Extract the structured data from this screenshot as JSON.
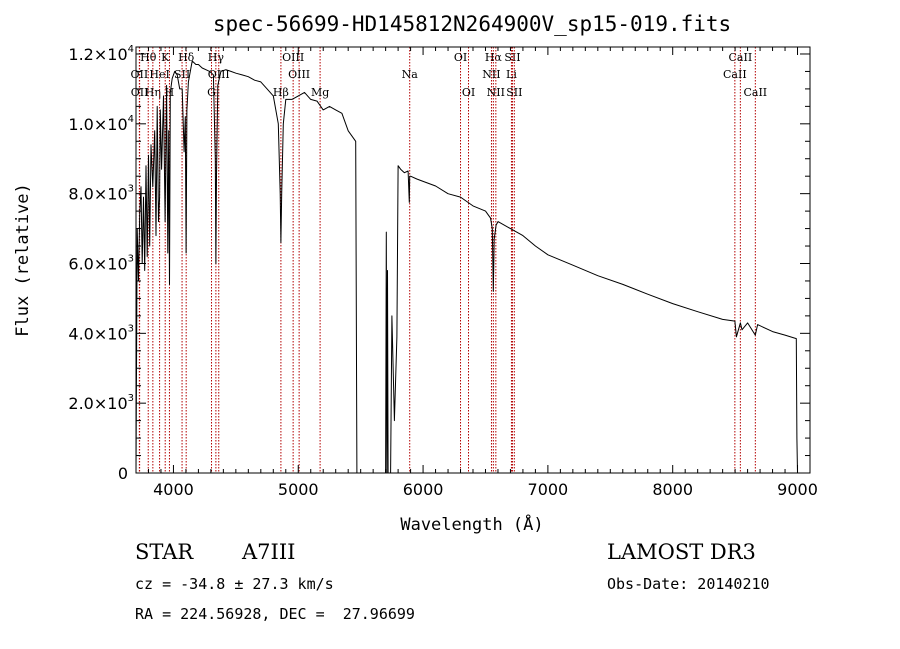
{
  "chart_data": {
    "type": "line",
    "title": "spec-56699-HD145812N264900V_sp15-019.fits",
    "xlabel": "Wavelength (Å)",
    "ylabel": "Flux (relative)",
    "xlim": [
      3700,
      9100
    ],
    "ylim": [
      0,
      12200
    ],
    "x_ticks": [
      {
        "value": 4000,
        "label": "4000"
      },
      {
        "value": 5000,
        "label": "5000"
      },
      {
        "value": 6000,
        "label": "6000"
      },
      {
        "value": 7000,
        "label": "7000"
      },
      {
        "value": 8000,
        "label": "8000"
      },
      {
        "value": 9000,
        "label": "9000"
      }
    ],
    "y_ticks": [
      {
        "value": 0,
        "mantissa": "0",
        "exp": ""
      },
      {
        "value": 2000,
        "mantissa": "2.0×10",
        "exp": "3"
      },
      {
        "value": 4000,
        "mantissa": "4.0×10",
        "exp": "3"
      },
      {
        "value": 6000,
        "mantissa": "6.0×10",
        "exp": "3"
      },
      {
        "value": 8000,
        "mantissa": "8.0×10",
        "exp": "3"
      },
      {
        "value": 10000,
        "mantissa": "1.0×10",
        "exp": "4"
      },
      {
        "value": 12000,
        "mantissa": "1.2×10",
        "exp": "4"
      }
    ],
    "series": [
      {
        "name": "flux",
        "x": [
          3700,
          3705,
          3710,
          3720,
          3730,
          3740,
          3750,
          3760,
          3770,
          3780,
          3790,
          3800,
          3810,
          3820,
          3835,
          3850,
          3860,
          3870,
          3880,
          3889,
          3895,
          3905,
          3920,
          3933,
          3945,
          3955,
          3962,
          3968,
          3975,
          3990,
          4010,
          4030,
          4050,
          4070,
          4085,
          4095,
          4101,
          4108,
          4120,
          4150,
          4180,
          4200,
          4230,
          4260,
          4290,
          4320,
          4335,
          4340,
          4345,
          4355,
          4380,
          4420,
          4460,
          4500,
          4550,
          4600,
          4650,
          4700,
          4750,
          4800,
          4840,
          4855,
          4861,
          4867,
          4880,
          4900,
          4950,
          5000,
          5050,
          5100,
          5150,
          5200,
          5250,
          5300,
          5350,
          5400,
          5440,
          5460,
          5470,
          5480,
          5560,
          5640,
          5700,
          5705,
          5710,
          5715,
          5720,
          5725,
          5740,
          5750,
          5770,
          5790,
          5800,
          5820,
          5850,
          5880,
          5890,
          5893,
          5900,
          5950,
          6000,
          6100,
          6200,
          6300,
          6400,
          6500,
          6540,
          6555,
          6563,
          6570,
          6585,
          6600,
          6700,
          6800,
          6900,
          7000,
          7200,
          7400,
          7600,
          7800,
          8000,
          8200,
          8400,
          8498,
          8510,
          8542,
          8555,
          8600,
          8662,
          8680,
          8800,
          8900,
          8990,
          8995,
          9000
        ],
        "values": [
          0,
          3500,
          7000,
          5500,
          7400,
          8200,
          6000,
          7900,
          5800,
          8800,
          6200,
          9100,
          6500,
          9400,
          8200,
          9800,
          6800,
          10500,
          7200,
          7900,
          10400,
          8700,
          10800,
          7200,
          11100,
          6300,
          9800,
          5400,
          10900,
          11300,
          11500,
          11400,
          11000,
          11000,
          9200,
          10200,
          6300,
          10400,
          11200,
          11800,
          11700,
          11700,
          11600,
          11550,
          11500,
          11400,
          9000,
          6000,
          8500,
          11100,
          11500,
          11550,
          11500,
          11450,
          11400,
          11350,
          11250,
          11200,
          11000,
          10800,
          10000,
          8000,
          6600,
          8000,
          10000,
          10700,
          10700,
          10800,
          10900,
          10700,
          10650,
          10400,
          10500,
          10400,
          10300,
          9800,
          9600,
          9500,
          0,
          0,
          0,
          0,
          0,
          6900,
          0,
          5800,
          0,
          0,
          0,
          4500,
          1500,
          3900,
          8800,
          8700,
          8600,
          8650,
          7750,
          8500,
          8500,
          8420,
          8350,
          8220,
          8000,
          7900,
          7650,
          7500,
          7300,
          7000,
          5200,
          6700,
          7100,
          7200,
          7000,
          6800,
          6500,
          6250,
          5950,
          5650,
          5400,
          5120,
          4850,
          4620,
          4400,
          4350,
          3900,
          4300,
          4100,
          4300,
          3950,
          4250,
          4050,
          3950,
          3850,
          1000,
          0
        ]
      }
    ],
    "emission_lines": [
      {
        "label": "Hθ",
        "x": 3798,
        "row": 1
      },
      {
        "label": "OII",
        "x": 3727,
        "row": 2
      },
      {
        "label": "OII",
        "x": 3729,
        "row": 3
      },
      {
        "label": "Hη",
        "x": 3835,
        "row": 3
      },
      {
        "label": "HeI",
        "x": 3889,
        "row": 2
      },
      {
        "label": "K",
        "x": 3934,
        "row": 1
      },
      {
        "label": "H",
        "x": 3968,
        "row": 3
      },
      {
        "label": "SII",
        "x": 4069,
        "row": 2
      },
      {
        "label": "Hδ",
        "x": 4102,
        "row": 1
      },
      {
        "label": "Hγ",
        "x": 4340,
        "row": 1
      },
      {
        "label": "G",
        "x": 4305,
        "row": 3
      },
      {
        "label": "OIII",
        "x": 4363,
        "row": 2
      },
      {
        "label": "OIII",
        "x": 4959,
        "row": 1
      },
      {
        "label": "OIII",
        "x": 5007,
        "row": 2
      },
      {
        "label": "Hβ",
        "x": 4861,
        "row": 3
      },
      {
        "label": "Mg",
        "x": 5175,
        "row": 3
      },
      {
        "label": "Na",
        "x": 5893,
        "row": 2
      },
      {
        "label": "OI",
        "x": 6300,
        "row": 1
      },
      {
        "label": "OI",
        "x": 6364,
        "row": 3
      },
      {
        "label": "Hα",
        "x": 6563,
        "row": 1
      },
      {
        "label": "NII",
        "x": 6548,
        "row": 2
      },
      {
        "label": "NII",
        "x": 6583,
        "row": 3
      },
      {
        "label": "SII",
        "x": 6716,
        "row": 1
      },
      {
        "label": "Li",
        "x": 6708,
        "row": 2
      },
      {
        "label": "SII",
        "x": 6731,
        "row": 3
      },
      {
        "label": "CaII",
        "x": 8542,
        "row": 1
      },
      {
        "label": "CaII",
        "x": 8498,
        "row": 2
      },
      {
        "label": "CaII",
        "x": 8662,
        "row": 3
      }
    ]
  },
  "info": {
    "object_class": "STAR",
    "subclass": "A7III",
    "survey": "LAMOST DR3",
    "redshift": "cz = -34.8 ± 27.3 km/s",
    "obs_date": "Obs-Date: 20140210",
    "coords": "RA = 224.56928, DEC =  27.96699"
  },
  "colors": {
    "spectrum": "#000000",
    "line_marker": "#b30000",
    "axes": "#000000"
  }
}
